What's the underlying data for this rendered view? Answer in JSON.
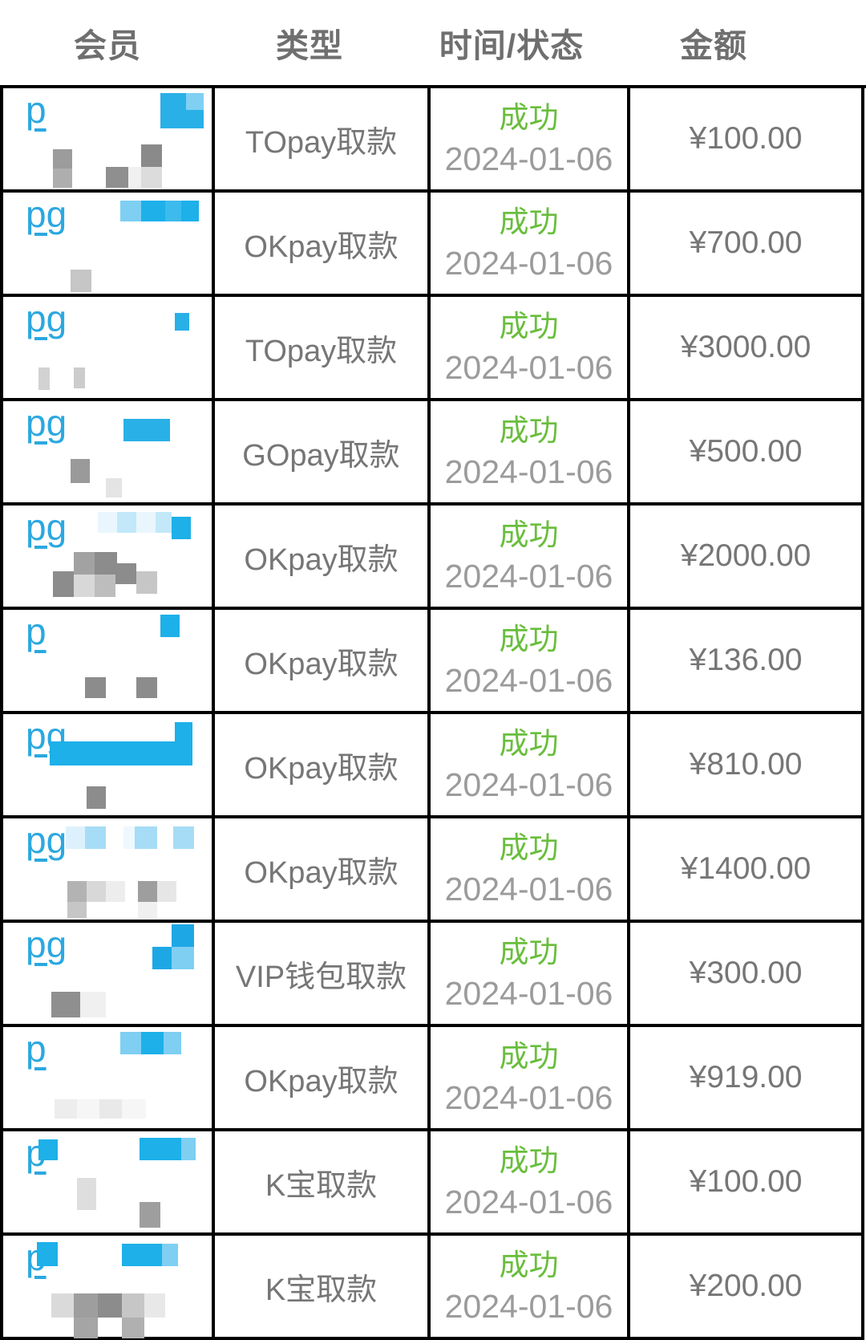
{
  "colors": {
    "link_blue": "#2ba8e0",
    "status_green": "#69be3c",
    "border_black": "#000000"
  },
  "header": {
    "columns": [
      "会员",
      "类型",
      "时间/状态",
      "金额"
    ]
  },
  "rows": [
    {
      "member": {
        "visible_text": "p"
      },
      "type": "TOpay取款",
      "status": "成功",
      "date": "2024-01-06",
      "amount": "¥100.00",
      "censor_blocks": [
        [
          196,
          6,
          32,
          44,
          "#29b0e7"
        ],
        [
          228,
          6,
          22,
          21,
          "#7fd0f2"
        ],
        [
          228,
          27,
          22,
          23,
          "#29b0e7"
        ],
        [
          62,
          76,
          24,
          24,
          "#9c9c9c"
        ],
        [
          62,
          100,
          24,
          24,
          "#aeaeae"
        ],
        [
          128,
          98,
          28,
          26,
          "#8f8f8f"
        ],
        [
          172,
          70,
          26,
          28,
          "#8a8a8a"
        ],
        [
          156,
          98,
          16,
          26,
          "#f0f0f0"
        ],
        [
          172,
          98,
          26,
          26,
          "#dcdcdc"
        ]
      ]
    },
    {
      "member": {
        "visible_text": "pg"
      },
      "type": "OKpay取款",
      "status": "成功",
      "date": "2024-01-06",
      "amount": "¥700.00",
      "censor_blocks": [
        [
          146,
          10,
          26,
          26,
          "#7ecff2"
        ],
        [
          172,
          10,
          30,
          26,
          "#1db0e9"
        ],
        [
          202,
          10,
          20,
          26,
          "#3cbbec"
        ],
        [
          222,
          10,
          22,
          26,
          "#1db0e9"
        ],
        [
          84,
          96,
          26,
          28,
          "#c6c6c6"
        ]
      ]
    },
    {
      "member": {
        "visible_text": "pg"
      },
      "type": "TOpay取款",
      "status": "成功",
      "date": "2024-01-06",
      "amount": "¥3000.00",
      "censor_blocks": [
        [
          214,
          20,
          18,
          22,
          "#29b0e7"
        ],
        [
          44,
          88,
          14,
          28,
          "#d2d2d2"
        ],
        [
          88,
          88,
          14,
          26,
          "#cccccc"
        ]
      ]
    },
    {
      "member": {
        "visible_text": "pg"
      },
      "type": "GOpay取款",
      "status": "成功",
      "date": "2024-01-06",
      "amount": "¥500.00",
      "censor_blocks": [
        [
          150,
          22,
          58,
          28,
          "#29b0e7"
        ],
        [
          84,
          72,
          24,
          30,
          "#9a9a9a"
        ],
        [
          128,
          96,
          20,
          24,
          "#e4e4e4"
        ]
      ]
    },
    {
      "member": {
        "visible_text": "pg"
      },
      "type": "OKpay取款",
      "status": "成功",
      "date": "2024-01-06",
      "amount": "¥2000.00",
      "censor_blocks": [
        [
          118,
          8,
          24,
          26,
          "#eaf6fd"
        ],
        [
          142,
          8,
          24,
          26,
          "#c2e8fa"
        ],
        [
          166,
          8,
          24,
          26,
          "#eaf6fd"
        ],
        [
          190,
          8,
          20,
          26,
          "#c2e8fa"
        ],
        [
          210,
          14,
          24,
          28,
          "#1db0e9"
        ],
        [
          88,
          58,
          26,
          28,
          "#a2a2a2"
        ],
        [
          114,
          58,
          28,
          28,
          "#8c8c8c"
        ],
        [
          140,
          72,
          26,
          26,
          "#8c8c8c"
        ],
        [
          62,
          82,
          26,
          32,
          "#8c8c8c"
        ],
        [
          88,
          86,
          26,
          28,
          "#d8d8d8"
        ],
        [
          114,
          86,
          26,
          28,
          "#bdbdbd"
        ],
        [
          166,
          82,
          26,
          28,
          "#c6c6c6"
        ]
      ]
    },
    {
      "member": {
        "visible_text": "p"
      },
      "type": "OKpay取款",
      "status": "成功",
      "date": "2024-01-06",
      "amount": "¥136.00",
      "censor_blocks": [
        [
          196,
          6,
          24,
          28,
          "#1db0e9"
        ],
        [
          102,
          84,
          26,
          26,
          "#8c8c8c"
        ],
        [
          166,
          84,
          26,
          26,
          "#8c8c8c"
        ]
      ]
    },
    {
      "member": {
        "visible_text": "pg"
      },
      "type": "OKpay取款",
      "status": "成功",
      "date": "2024-01-06",
      "amount": "¥810.00",
      "censor_blocks": [
        [
          214,
          10,
          22,
          26,
          "#1db0e9"
        ],
        [
          58,
          34,
          178,
          30,
          "#1db0e9"
        ],
        [
          104,
          90,
          24,
          28,
          "#8c8c8c"
        ]
      ]
    },
    {
      "member": {
        "visible_text": "pg"
      },
      "type": "OKpay取款",
      "status": "成功",
      "date": "2024-01-06",
      "amount": "¥1400.00",
      "censor_blocks": [
        [
          78,
          10,
          24,
          28,
          "#ddf1fc"
        ],
        [
          102,
          10,
          26,
          28,
          "#a6dcf6"
        ],
        [
          150,
          10,
          14,
          28,
          "#eef8fe"
        ],
        [
          164,
          10,
          28,
          28,
          "#a6dcf6"
        ],
        [
          212,
          10,
          26,
          28,
          "#a6dcf6"
        ],
        [
          80,
          78,
          24,
          26,
          "#b3b3b3"
        ],
        [
          104,
          78,
          24,
          26,
          "#d8d8d8"
        ],
        [
          80,
          104,
          24,
          20,
          "#c6c6c6"
        ],
        [
          128,
          78,
          24,
          26,
          "#ededed"
        ],
        [
          168,
          78,
          24,
          26,
          "#9e9e9e"
        ],
        [
          192,
          78,
          24,
          26,
          "#e6e6e6"
        ],
        [
          168,
          104,
          24,
          20,
          "#f0f0f0"
        ]
      ]
    },
    {
      "member": {
        "visible_text": "pg"
      },
      "type": "VIP钱包取款",
      "status": "成功",
      "date": "2024-01-06",
      "amount": "¥300.00",
      "censor_blocks": [
        [
          210,
          2,
          28,
          30,
          "#1da8e5"
        ],
        [
          186,
          30,
          24,
          28,
          "#1da8e5"
        ],
        [
          210,
          30,
          28,
          28,
          "#7ecff2"
        ],
        [
          60,
          86,
          36,
          32,
          "#8f8f8f"
        ],
        [
          96,
          86,
          32,
          32,
          "#f0f0f0"
        ]
      ]
    },
    {
      "member": {
        "visible_text": "p"
      },
      "type": "OKpay取款",
      "status": "成功",
      "date": "2024-01-06",
      "amount": "¥919.00",
      "censor_blocks": [
        [
          146,
          6,
          26,
          28,
          "#7ecff2"
        ],
        [
          172,
          6,
          28,
          28,
          "#1db0e9"
        ],
        [
          200,
          6,
          22,
          28,
          "#7ecff2"
        ],
        [
          64,
          90,
          28,
          24,
          "#ededed"
        ],
        [
          92,
          90,
          28,
          24,
          "#f6f6f6"
        ],
        [
          120,
          90,
          28,
          24,
          "#e9e9e9"
        ],
        [
          148,
          90,
          30,
          24,
          "#f6f6f6"
        ]
      ]
    },
    {
      "member": {
        "visible_text": "p"
      },
      "type": "K宝取款",
      "status": "成功",
      "date": "2024-01-06",
      "amount": "¥100.00",
      "censor_blocks": [
        [
          44,
          10,
          24,
          26,
          "#1db0e9"
        ],
        [
          170,
          8,
          52,
          28,
          "#1db0e9"
        ],
        [
          222,
          8,
          18,
          28,
          "#7ecff2"
        ],
        [
          92,
          58,
          24,
          40,
          "#dedede"
        ],
        [
          170,
          88,
          26,
          32,
          "#9e9e9e"
        ]
      ]
    },
    {
      "member": {
        "visible_text": "p"
      },
      "type": "K宝取款",
      "status": "成功",
      "date": "2024-01-06",
      "amount": "¥200.00",
      "censor_blocks": [
        [
          42,
          8,
          26,
          30,
          "#1db0e9"
        ],
        [
          148,
          10,
          50,
          28,
          "#1db0e9"
        ],
        [
          198,
          10,
          20,
          28,
          "#7ecff2"
        ],
        [
          60,
          72,
          28,
          30,
          "#dadada"
        ],
        [
          88,
          72,
          30,
          30,
          "#9e9e9e"
        ],
        [
          118,
          72,
          30,
          30,
          "#8c8c8c"
        ],
        [
          148,
          72,
          28,
          30,
          "#c6c6c6"
        ],
        [
          176,
          72,
          26,
          30,
          "#e8e8e8"
        ],
        [
          88,
          102,
          30,
          26,
          "#a5a5a5"
        ],
        [
          148,
          102,
          28,
          26,
          "#b0b0b0"
        ]
      ]
    }
  ]
}
